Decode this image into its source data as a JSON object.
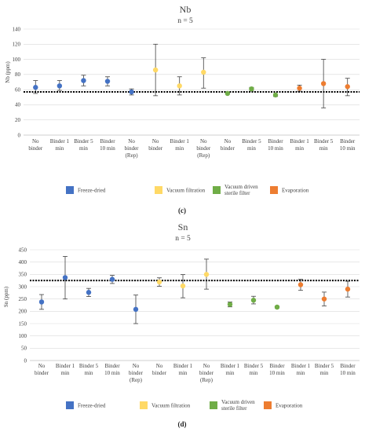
{
  "legend": [
    {
      "name": "Freeze-dried",
      "color": "#4472c4"
    },
    {
      "name": "Vacuum filtration",
      "color": "#ffd966"
    },
    {
      "name": "Vacuum driven\nsterile filter",
      "color": "#70ad47"
    },
    {
      "name": "Evaporation",
      "color": "#ed7d31"
    }
  ],
  "chart_data": [
    {
      "type": "scatter",
      "title": "Nb",
      "subtitle": "n = 5",
      "ylabel": "Nb (ppm)",
      "panel_label": "(c)",
      "ylim": [
        0,
        140
      ],
      "yticks": [
        0,
        20,
        40,
        60,
        80,
        100,
        120,
        140
      ],
      "reference_line": 57,
      "categories": [
        "No\nbinder",
        "Binder 1\nmin",
        "Binder 5\nmin",
        "Binder\n10 min",
        "No\nbinder\n(Rep)",
        "No\nbinder",
        "Binder 1\nmin",
        "No\nbinder\n(Rep)",
        "No\nbinder",
        "Binder 5\nmin",
        "Binder\n10 min",
        "Binder 1\nmin",
        "Binder 5\nmin",
        "Binder\n10 min"
      ],
      "points": [
        {
          "group": 0,
          "value": 63,
          "err_low": 55,
          "err_high": 72
        },
        {
          "group": 0,
          "value": 65,
          "err_low": 59,
          "err_high": 72
        },
        {
          "group": 0,
          "value": 72,
          "err_low": 65,
          "err_high": 79
        },
        {
          "group": 0,
          "value": 71,
          "err_low": 65,
          "err_high": 77
        },
        {
          "group": 0,
          "value": 57,
          "err_low": 53,
          "err_high": 61
        },
        {
          "group": 1,
          "value": 86,
          "err_low": 52,
          "err_high": 120
        },
        {
          "group": 1,
          "value": 65,
          "err_low": 53,
          "err_high": 77
        },
        {
          "group": 1,
          "value": 83,
          "err_low": 62,
          "err_high": 102
        },
        {
          "group": 2,
          "value": 55,
          "err_low": 54,
          "err_high": 57
        },
        {
          "group": 2,
          "value": 61,
          "err_low": 58,
          "err_high": 63
        },
        {
          "group": 2,
          "value": 53,
          "err_low": 51,
          "err_high": 54
        },
        {
          "group": 3,
          "value": 62,
          "err_low": 58,
          "err_high": 66
        },
        {
          "group": 3,
          "value": 68,
          "err_low": 36,
          "err_high": 100
        },
        {
          "group": 3,
          "value": 64,
          "err_low": 52,
          "err_high": 75
        }
      ]
    },
    {
      "type": "scatter",
      "title": "Sn",
      "subtitle": "n = 5",
      "ylabel": "Sn (ppm)",
      "panel_label": "(d)",
      "ylim": [
        0,
        450
      ],
      "yticks": [
        0,
        50,
        100,
        150,
        200,
        250,
        300,
        350,
        400,
        450
      ],
      "reference_line": 325,
      "categories": [
        "No\nbinder",
        "Binder 1\nmin",
        "Binder 5\nmin",
        "Binder\n10 min",
        "No\nbinder\n(Rep)",
        "No\nbinder",
        "Binder 1\nmin",
        "No\nbinder\n(Rep)",
        "Binder 1\nmin",
        "Binder 5\nmin",
        "Binder\n10 min",
        "Binder 1\nmin",
        "Binder 5\nmin",
        "Binder\n10 min"
      ],
      "points": [
        {
          "group": 0,
          "value": 238,
          "err_low": 208,
          "err_high": 268
        },
        {
          "group": 0,
          "value": 337,
          "err_low": 250,
          "err_high": 423
        },
        {
          "group": 0,
          "value": 277,
          "err_low": 260,
          "err_high": 293
        },
        {
          "group": 0,
          "value": 330,
          "err_low": 313,
          "err_high": 346
        },
        {
          "group": 0,
          "value": 208,
          "err_low": 150,
          "err_high": 266
        },
        {
          "group": 1,
          "value": 319,
          "err_low": 302,
          "err_high": 336
        },
        {
          "group": 1,
          "value": 303,
          "err_low": 255,
          "err_high": 349
        },
        {
          "group": 1,
          "value": 350,
          "err_low": 290,
          "err_high": 412
        },
        {
          "group": 2,
          "value": 228,
          "err_low": 218,
          "err_high": 238
        },
        {
          "group": 2,
          "value": 245,
          "err_low": 230,
          "err_high": 261
        },
        {
          "group": 2,
          "value": 217,
          "err_low": 213,
          "err_high": 221
        },
        {
          "group": 3,
          "value": 308,
          "err_low": 285,
          "err_high": 330
        },
        {
          "group": 3,
          "value": 250,
          "err_low": 222,
          "err_high": 278
        },
        {
          "group": 3,
          "value": 290,
          "err_low": 258,
          "err_high": 322
        }
      ]
    }
  ]
}
